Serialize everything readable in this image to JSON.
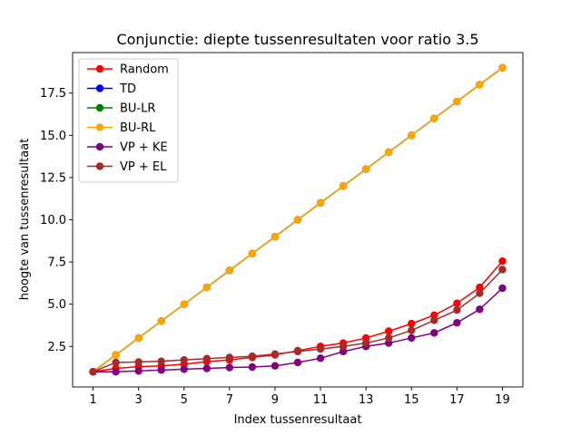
{
  "chart_data": {
    "type": "line",
    "title": "Conjunctie: diepte tussenresultaten voor ratio 3.5",
    "xlabel": "Index tussenresultaat",
    "ylabel": "hoogte van tussenresultaat",
    "xlim": [
      0.1,
      19.9
    ],
    "ylim": [
      0.1,
      19.9
    ],
    "xticks": [
      1,
      3,
      5,
      7,
      9,
      11,
      13,
      15,
      17,
      19
    ],
    "yticks": [
      2.5,
      5.0,
      7.5,
      10.0,
      12.5,
      15.0,
      17.5
    ],
    "ytick_labels": [
      "2.5",
      "5.0",
      "7.5",
      "10.0",
      "12.5",
      "15.0",
      "17.5"
    ],
    "grid": false,
    "legend_position": "top-left",
    "x": [
      1,
      2,
      3,
      4,
      5,
      6,
      7,
      8,
      9,
      10,
      11,
      12,
      13,
      14,
      15,
      16,
      17,
      18,
      19
    ],
    "series": [
      {
        "name": "Random",
        "color": "#ff0000",
        "values": [
          1.0,
          1.2,
          1.3,
          1.35,
          1.45,
          1.6,
          1.7,
          1.85,
          2.0,
          2.25,
          2.5,
          2.7,
          3.0,
          3.4,
          3.85,
          4.35,
          5.05,
          6.0,
          7.55
        ]
      },
      {
        "name": "TD",
        "color": "#0000ff",
        "values": [
          1,
          2,
          3,
          4,
          5,
          6,
          7,
          8,
          9,
          10,
          11,
          12,
          13,
          14,
          15,
          16,
          17,
          18,
          19
        ]
      },
      {
        "name": "BU-LR",
        "color": "#008000",
        "values": [
          1,
          2,
          3,
          4,
          5,
          6,
          7,
          8,
          9,
          10,
          11,
          12,
          13,
          14,
          15,
          16,
          17,
          18,
          19
        ]
      },
      {
        "name": "BU-RL",
        "color": "#ffa500",
        "values": [
          1,
          2,
          3,
          4,
          5,
          6,
          7,
          8,
          9,
          10,
          11,
          12,
          13,
          14,
          15,
          16,
          17,
          18,
          19
        ]
      },
      {
        "name": "VP + KE",
        "color": "#800080",
        "values": [
          1.0,
          1.0,
          1.05,
          1.1,
          1.15,
          1.2,
          1.25,
          1.28,
          1.35,
          1.55,
          1.8,
          2.2,
          2.5,
          2.7,
          3.0,
          3.3,
          3.9,
          4.7,
          5.95
        ]
      },
      {
        "name": "VP + EL",
        "color": "#a52a2a",
        "values": [
          1.0,
          1.55,
          1.58,
          1.62,
          1.7,
          1.78,
          1.85,
          1.92,
          2.05,
          2.2,
          2.35,
          2.5,
          2.7,
          3.0,
          3.45,
          4.05,
          4.65,
          5.65,
          7.05
        ]
      }
    ]
  }
}
